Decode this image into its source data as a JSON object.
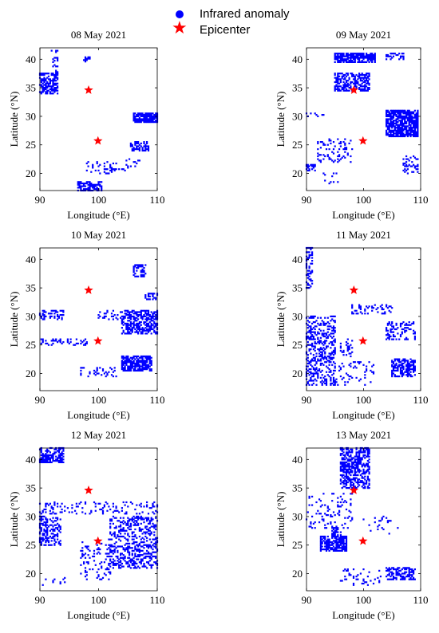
{
  "legend": {
    "anomaly_label": "Infrared anomaly",
    "epicenter_label": "Epicenter",
    "anomaly_color": "#0000ff",
    "epicenter_color": "#ff0000"
  },
  "chart_data": [
    {
      "type": "scatter",
      "title": "08 May 2021",
      "xlabel": "Longitude (°E)",
      "ylabel": "Latitude (°N)",
      "xlim": [
        90,
        110
      ],
      "ylim": [
        17,
        42
      ],
      "xticks": [
        90,
        100,
        110
      ],
      "yticks": [
        20,
        25,
        30,
        35,
        40
      ],
      "epicenters": [
        [
          98.3,
          34.6
        ],
        [
          99.9,
          25.7
        ]
      ],
      "anomaly_clusters": [
        {
          "x": [
            90,
            93
          ],
          "y": [
            34,
            37.5
          ],
          "density": 0.6
        },
        {
          "x": [
            92,
            93
          ],
          "y": [
            37.5,
            41.5
          ],
          "density": 0.3
        },
        {
          "x": [
            97.5,
            98.5
          ],
          "y": [
            39.6,
            40.4
          ],
          "density": 0.6
        },
        {
          "x": [
            106,
            110
          ],
          "y": [
            29,
            30.5
          ],
          "density": 0.85
        },
        {
          "x": [
            105.5,
            108.5
          ],
          "y": [
            24,
            25.5
          ],
          "density": 0.5
        },
        {
          "x": [
            96.5,
            100.5
          ],
          "y": [
            17,
            18.5
          ],
          "density": 0.7
        },
        {
          "x": [
            98,
            103
          ],
          "y": [
            20,
            22
          ],
          "density": 0.15
        },
        {
          "x": [
            103,
            107
          ],
          "y": [
            20.5,
            22.5
          ],
          "density": 0.1
        }
      ]
    },
    {
      "type": "scatter",
      "title": "09 May 2021",
      "xlabel": "Longitude (°E)",
      "ylabel": "Latitude (°N)",
      "xlim": [
        90,
        110
      ],
      "ylim": [
        17,
        42
      ],
      "xticks": [
        90,
        100,
        110
      ],
      "yticks": [
        20,
        25,
        30,
        35,
        40
      ],
      "epicenters": [
        [
          98.3,
          34.6
        ],
        [
          99.9,
          25.7
        ]
      ],
      "anomaly_clusters": [
        {
          "x": [
            95,
            102
          ],
          "y": [
            39.5,
            41
          ],
          "density": 0.8
        },
        {
          "x": [
            104,
            107
          ],
          "y": [
            40,
            41
          ],
          "density": 0.4
        },
        {
          "x": [
            95,
            101
          ],
          "y": [
            34.5,
            37.5
          ],
          "density": 0.55
        },
        {
          "x": [
            104,
            109.5
          ],
          "y": [
            26.5,
            31
          ],
          "density": 0.8
        },
        {
          "x": [
            92,
            98
          ],
          "y": [
            22,
            26
          ],
          "density": 0.15
        },
        {
          "x": [
            90,
            91.5
          ],
          "y": [
            20.5,
            21.5
          ],
          "density": 0.7
        },
        {
          "x": [
            107,
            109.5
          ],
          "y": [
            20,
            23
          ],
          "density": 0.3
        },
        {
          "x": [
            90,
            93
          ],
          "y": [
            30,
            30.5
          ],
          "density": 0.3
        },
        {
          "x": [
            93,
            96
          ],
          "y": [
            18,
            20
          ],
          "density": 0.1
        }
      ]
    },
    {
      "type": "scatter",
      "title": "10 May 2021",
      "xlabel": "Longitude (°E)",
      "ylabel": "Latitude (°N)",
      "xlim": [
        90,
        110
      ],
      "ylim": [
        17,
        42
      ],
      "xticks": [
        90,
        100,
        110
      ],
      "yticks": [
        20,
        25,
        30,
        35,
        40
      ],
      "epicenters": [
        [
          98.3,
          34.6
        ],
        [
          99.9,
          25.7
        ]
      ],
      "anomaly_clusters": [
        {
          "x": [
            104,
            110
          ],
          "y": [
            27,
            31
          ],
          "density": 0.55
        },
        {
          "x": [
            104,
            109
          ],
          "y": [
            20.5,
            23
          ],
          "density": 0.75
        },
        {
          "x": [
            90,
            94
          ],
          "y": [
            29.5,
            31
          ],
          "density": 0.35
        },
        {
          "x": [
            90,
            98
          ],
          "y": [
            25,
            26
          ],
          "density": 0.3
        },
        {
          "x": [
            100,
            104
          ],
          "y": [
            29.5,
            31
          ],
          "density": 0.2
        },
        {
          "x": [
            106,
            108
          ],
          "y": [
            37,
            39
          ],
          "density": 0.4
        },
        {
          "x": [
            108,
            110
          ],
          "y": [
            33,
            34
          ],
          "density": 0.5
        },
        {
          "x": [
            97,
            103
          ],
          "y": [
            19.5,
            21
          ],
          "density": 0.2
        }
      ]
    },
    {
      "type": "scatter",
      "title": "11 May 2021",
      "xlabel": "Longitude (°E)",
      "ylabel": "Latitude (°N)",
      "xlim": [
        90,
        110
      ],
      "ylim": [
        17,
        42
      ],
      "xticks": [
        90,
        100,
        110
      ],
      "yticks": [
        20,
        25,
        30,
        35,
        40
      ],
      "epicenters": [
        [
          98.3,
          34.6
        ],
        [
          99.9,
          25.7
        ]
      ],
      "anomaly_clusters": [
        {
          "x": [
            90,
            95
          ],
          "y": [
            18,
            30
          ],
          "density": 0.35
        },
        {
          "x": [
            90,
            91
          ],
          "y": [
            35,
            42
          ],
          "density": 0.4
        },
        {
          "x": [
            98,
            105
          ],
          "y": [
            30.5,
            32
          ],
          "density": 0.25
        },
        {
          "x": [
            104,
            109
          ],
          "y": [
            26,
            29
          ],
          "density": 0.3
        },
        {
          "x": [
            105,
            109
          ],
          "y": [
            19.5,
            22.5
          ],
          "density": 0.6
        },
        {
          "x": [
            95,
            102
          ],
          "y": [
            18,
            22
          ],
          "density": 0.12
        },
        {
          "x": [
            96,
            98
          ],
          "y": [
            23,
            26
          ],
          "density": 0.15
        }
      ]
    },
    {
      "type": "scatter",
      "title": "12 May 2021",
      "xlabel": "Longitude (°E)",
      "ylabel": "Latitude (°N)",
      "xlim": [
        90,
        110
      ],
      "ylim": [
        17,
        42
      ],
      "xticks": [
        90,
        100,
        110
      ],
      "yticks": [
        20,
        25,
        30,
        35,
        40
      ],
      "epicenters": [
        [
          98.3,
          34.6
        ],
        [
          99.9,
          25.7
        ]
      ],
      "anomaly_clusters": [
        {
          "x": [
            90,
            94
          ],
          "y": [
            39.5,
            42
          ],
          "density": 0.6
        },
        {
          "x": [
            90,
            93.5
          ],
          "y": [
            25,
            30
          ],
          "density": 0.4
        },
        {
          "x": [
            90,
            110
          ],
          "y": [
            30.5,
            32.5
          ],
          "density": 0.2
        },
        {
          "x": [
            102,
            110
          ],
          "y": [
            21,
            30
          ],
          "density": 0.35
        },
        {
          "x": [
            97,
            102
          ],
          "y": [
            19,
            26
          ],
          "density": 0.12
        },
        {
          "x": [
            90,
            96
          ],
          "y": [
            18,
            19.5
          ],
          "density": 0.1
        }
      ]
    },
    {
      "type": "scatter",
      "title": "13 May 2021",
      "xlabel": "Longitude (°E)",
      "ylabel": "Latitude (°N)",
      "xlim": [
        90,
        110
      ],
      "ylim": [
        17,
        42
      ],
      "xticks": [
        90,
        100,
        110
      ],
      "yticks": [
        20,
        25,
        30,
        35,
        40
      ],
      "epicenters": [
        [
          98.3,
          34.6
        ],
        [
          99.9,
          25.7
        ]
      ],
      "anomaly_clusters": [
        {
          "x": [
            96,
            101
          ],
          "y": [
            35,
            42
          ],
          "density": 0.5
        },
        {
          "x": [
            92.5,
            97
          ],
          "y": [
            24,
            26.5
          ],
          "density": 0.7
        },
        {
          "x": [
            94.5,
            96
          ],
          "y": [
            26.5,
            28
          ],
          "density": 0.5
        },
        {
          "x": [
            104,
            109
          ],
          "y": [
            19,
            21
          ],
          "density": 0.5
        },
        {
          "x": [
            90,
            98
          ],
          "y": [
            28,
            34
          ],
          "density": 0.1
        },
        {
          "x": [
            100,
            106
          ],
          "y": [
            27,
            30
          ],
          "density": 0.1
        },
        {
          "x": [
            96,
            103
          ],
          "y": [
            18,
            21
          ],
          "density": 0.08
        }
      ]
    }
  ]
}
